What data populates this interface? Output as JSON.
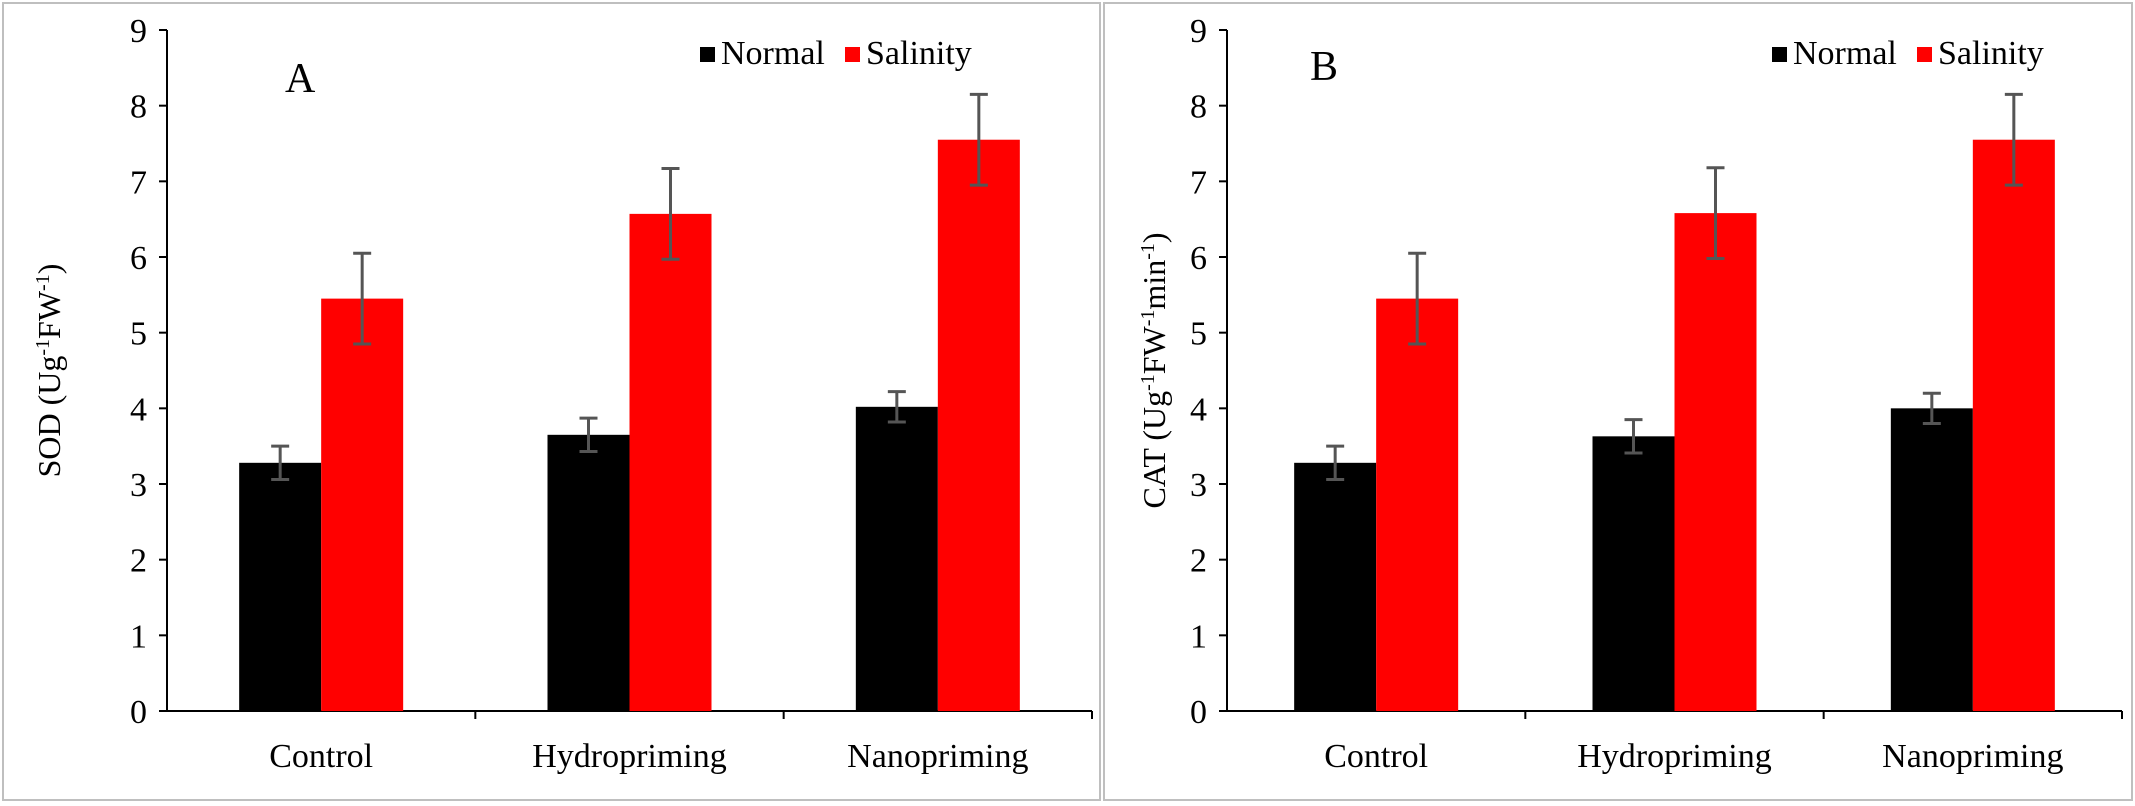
{
  "figure": {
    "colors": {
      "normal": "#000000",
      "salinity": "#ff0000",
      "error_bar": "#555555",
      "frame": "#bfbfbf"
    }
  },
  "chart_data": [
    {
      "type": "bar",
      "panel_label": "A",
      "ylabel": "SOD (Ug-1FW-1)",
      "ylabel_parts": [
        {
          "t": "SOD (Ug",
          "sup": false
        },
        {
          "t": "-1",
          "sup": true
        },
        {
          "t": "FW",
          "sup": false
        },
        {
          "t": "-1",
          "sup": true
        },
        {
          "t": ")",
          "sup": false
        }
      ],
      "xlabel": "",
      "categories": [
        "Control",
        "Hydropriming",
        "Nanopriming"
      ],
      "ylim": [
        0,
        9
      ],
      "yticks": [
        "0",
        "1",
        "2",
        "3",
        "4",
        "5",
        "6",
        "7",
        "8",
        "9"
      ],
      "legend_position": "top-right",
      "series": [
        {
          "name": "Normal",
          "color": "#000000",
          "values": [
            3.28,
            3.65,
            4.02
          ],
          "errors": [
            0.22,
            0.22,
            0.2
          ]
        },
        {
          "name": "Salinity",
          "color": "#ff0000",
          "values": [
            5.45,
            6.57,
            7.55
          ],
          "errors": [
            0.6,
            0.6,
            0.6
          ]
        }
      ]
    },
    {
      "type": "bar",
      "panel_label": "B",
      "ylabel": "CAT (Ug-1FW-1min-1)",
      "ylabel_parts": [
        {
          "t": "CAT (Ug",
          "sup": false
        },
        {
          "t": "-1",
          "sup": true
        },
        {
          "t": "FW",
          "sup": false
        },
        {
          "t": "-1",
          "sup": true
        },
        {
          "t": "min",
          "sup": false
        },
        {
          "t": "-1",
          "sup": true
        },
        {
          "t": ")",
          "sup": false
        }
      ],
      "xlabel": "",
      "categories": [
        "Control",
        "Hydropriming",
        "Nanopriming"
      ],
      "ylim": [
        0,
        9
      ],
      "yticks": [
        "0",
        "1",
        "2",
        "3",
        "4",
        "5",
        "6",
        "7",
        "8",
        "9"
      ],
      "legend_position": "top-right",
      "series": [
        {
          "name": "Normal",
          "color": "#000000",
          "values": [
            3.28,
            3.63,
            4.0
          ],
          "errors": [
            0.22,
            0.22,
            0.2
          ]
        },
        {
          "name": "Salinity",
          "color": "#ff0000",
          "values": [
            5.45,
            6.58,
            7.55
          ],
          "errors": [
            0.6,
            0.6,
            0.6
          ]
        }
      ]
    }
  ]
}
